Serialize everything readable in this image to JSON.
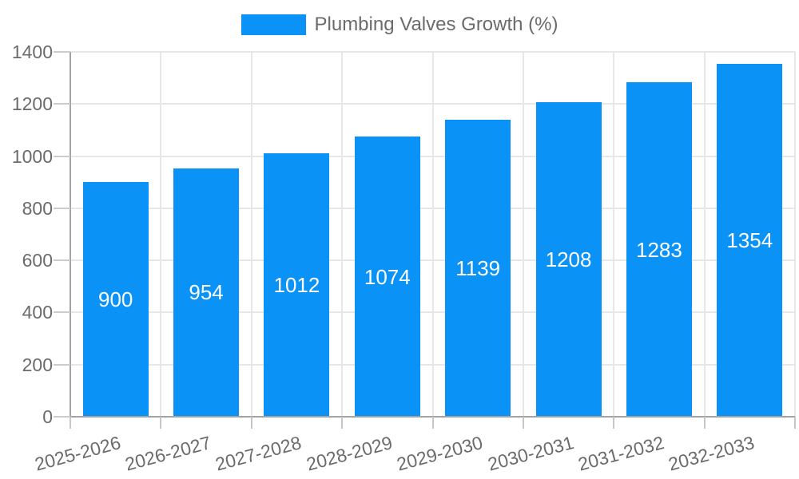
{
  "legend": {
    "label": "Plumbing Valves Growth (%)"
  },
  "colors": {
    "bar": "#0a92f6",
    "bar_value_text": "#ffffff",
    "grid": "#e7e7e7",
    "axis": "#a3a3a3",
    "y_tick": "#cccccc",
    "x_tick": "#c6c6c6",
    "label_text": "#6b6b6b"
  },
  "chart_data": {
    "type": "bar",
    "title": "Plumbing Valves Growth (%)",
    "categories": [
      "2025-2026",
      "2026-2027",
      "2027-2028",
      "2028-2029",
      "2029-2030",
      "2030-2031",
      "2031-2032",
      "2032-2033"
    ],
    "values": [
      900,
      954,
      1012,
      1074,
      1139,
      1208,
      1283,
      1354
    ],
    "value_labels": [
      "900",
      "954",
      "1012",
      "1074",
      "1139",
      "1208",
      "1283",
      "1354"
    ],
    "xlabel": "",
    "ylabel": "",
    "ylim": [
      0,
      1400
    ],
    "ytick_step": 200,
    "yticks": [
      0,
      200,
      400,
      600,
      800,
      1000,
      1200,
      1400
    ],
    "grid": true,
    "legend_position": "top-center",
    "x_label_rotation_deg": -15,
    "value_label_position": "center-of-bar"
  }
}
